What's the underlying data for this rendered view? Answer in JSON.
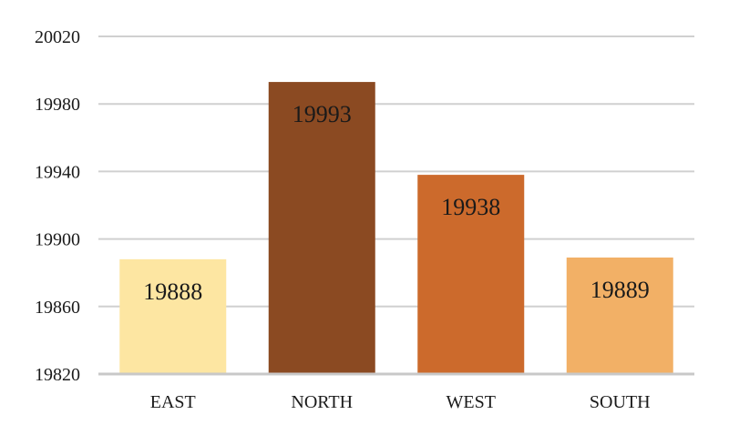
{
  "chart_data": {
    "type": "bar",
    "categories": [
      "EAST",
      "NORTH",
      "WEST",
      "SOUTH"
    ],
    "values": [
      19888,
      19993,
      19938,
      19889
    ],
    "data_labels": [
      "19888",
      "19993",
      "19938",
      "19889"
    ],
    "colors": [
      "#FDE6A2",
      "#8B4A22",
      "#CC6A2C",
      "#F2B066"
    ],
    "title": "",
    "xlabel": "",
    "ylabel": "",
    "ylim": [
      19820,
      20020
    ],
    "yticks": [
      19820,
      19860,
      19900,
      19940,
      19980,
      20020
    ],
    "ytick_labels": [
      "19820",
      "19860",
      "19900",
      "19940",
      "19980",
      "20020"
    ],
    "grid": true,
    "legend": "none"
  }
}
